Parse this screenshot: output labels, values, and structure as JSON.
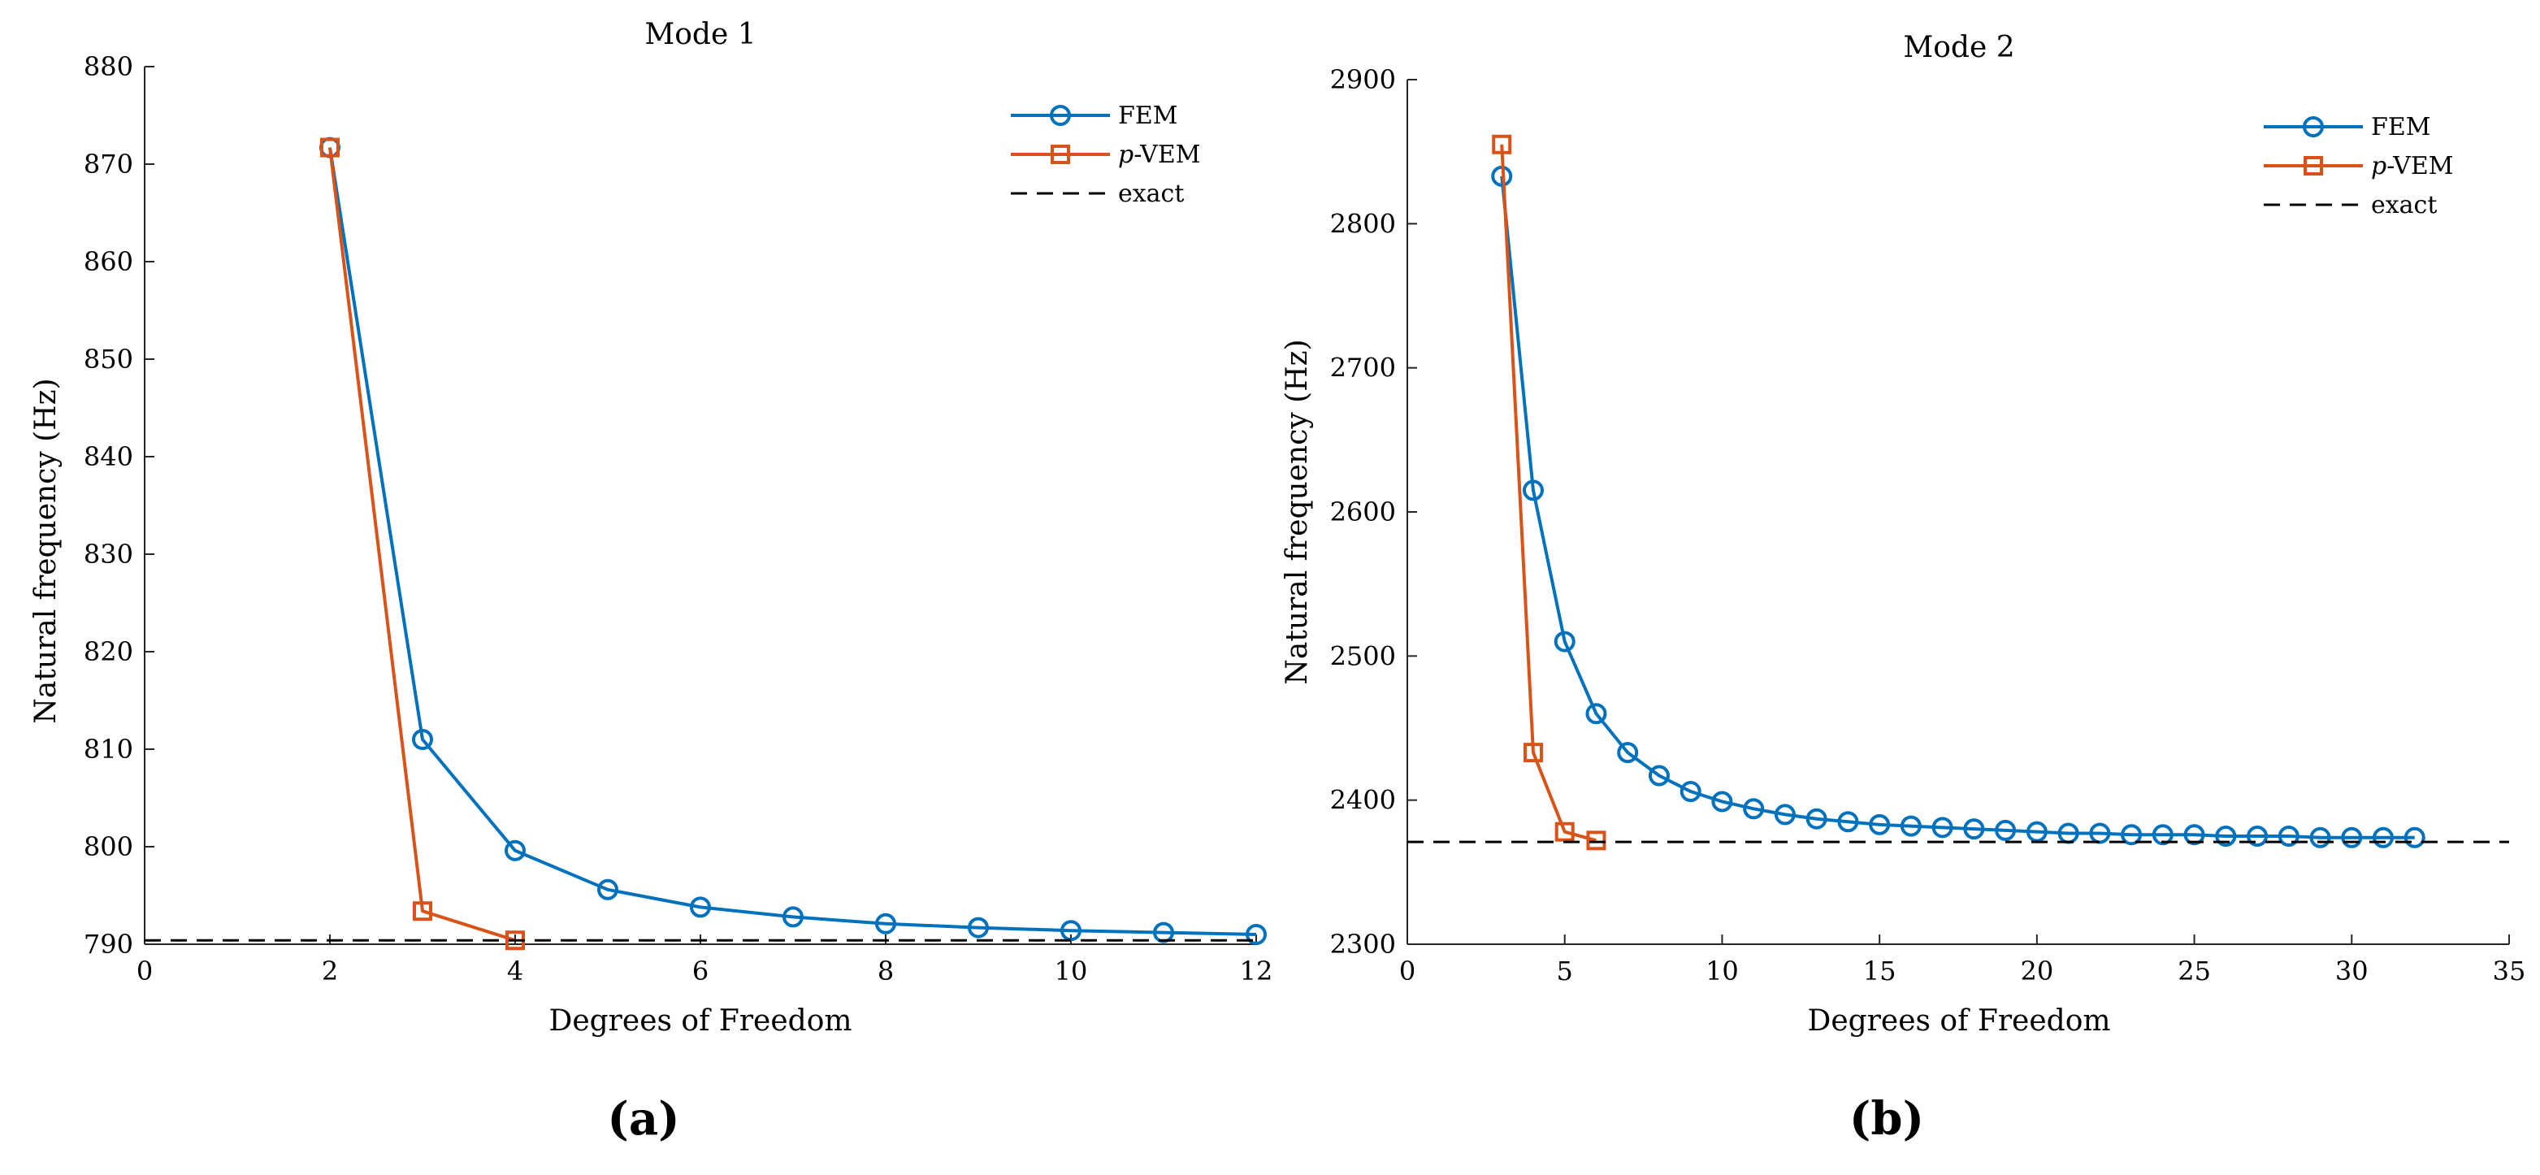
{
  "chart_data": [
    {
      "type": "line",
      "title": "Mode 1",
      "xlabel": "Degrees of Freedom",
      "ylabel": "Natural frequency (Hz)",
      "xlim": [
        0,
        12
      ],
      "ylim": [
        790,
        880
      ],
      "xticks": [
        0,
        2,
        4,
        6,
        8,
        10,
        12
      ],
      "yticks": [
        790,
        800,
        810,
        820,
        830,
        840,
        850,
        860,
        870,
        880
      ],
      "legend_position": "top-right",
      "panel_label": "(a)",
      "series": [
        {
          "name": "FEM",
          "color": "#0072BD",
          "marker": "circle",
          "x": [
            2,
            3,
            4,
            5,
            6,
            7,
            8,
            9,
            10,
            11,
            12
          ],
          "y": [
            871.7,
            811.0,
            799.6,
            795.6,
            793.8,
            792.8,
            792.1,
            791.7,
            791.4,
            791.2,
            791.0
          ]
        },
        {
          "name": "p-VEM",
          "name_italic": "p",
          "name_rest": "-VEM",
          "color": "#D95319",
          "marker": "square",
          "x": [
            2,
            3,
            4
          ],
          "y": [
            871.7,
            793.4,
            790.4
          ]
        },
        {
          "name": "exact",
          "color": "#000000",
          "dash": true,
          "value": 790.4
        }
      ]
    },
    {
      "type": "line",
      "title": "Mode 2",
      "xlabel": "Degrees of Freedom",
      "ylabel": "Natural frequency (Hz)",
      "xlim": [
        0,
        35
      ],
      "ylim": [
        2300,
        2900
      ],
      "xticks": [
        0,
        5,
        10,
        15,
        20,
        25,
        30,
        35
      ],
      "yticks": [
        2300,
        2400,
        2500,
        2600,
        2700,
        2800,
        2900
      ],
      "legend_position": "top-right",
      "panel_label": "(b)",
      "series": [
        {
          "name": "FEM",
          "color": "#0072BD",
          "marker": "circle",
          "x": [
            3,
            4,
            5,
            6,
            7,
            8,
            9,
            10,
            11,
            12,
            13,
            14,
            15,
            16,
            17,
            18,
            19,
            20,
            21,
            22,
            23,
            24,
            25,
            26,
            27,
            28,
            29,
            30,
            31,
            32
          ],
          "y": [
            2833,
            2615,
            2510,
            2460,
            2433,
            2417,
            2406,
            2399,
            2394,
            2390,
            2387,
            2385,
            2383,
            2382,
            2381,
            2380,
            2379,
            2378,
            2377,
            2377,
            2376,
            2376,
            2376,
            2375,
            2375,
            2375,
            2374,
            2374,
            2374,
            2374
          ]
        },
        {
          "name": "p-VEM",
          "name_italic": "p",
          "name_rest": "-VEM",
          "color": "#D95319",
          "marker": "square",
          "x": [
            3,
            4,
            5,
            6
          ],
          "y": [
            2855,
            2433,
            2378,
            2372
          ]
        },
        {
          "name": "exact",
          "color": "#000000",
          "dash": true,
          "value": 2371
        }
      ]
    }
  ]
}
